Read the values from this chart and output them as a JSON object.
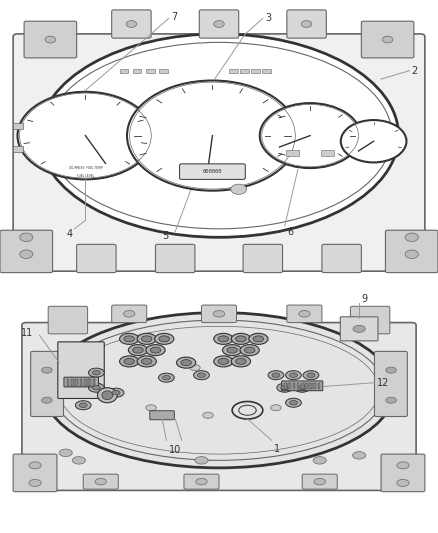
{
  "bg_color": "#ffffff",
  "lc": "#666666",
  "dc": "#333333",
  "lgc": "#999999",
  "mc": "#888888",
  "fig_w": 4.38,
  "fig_h": 5.33,
  "dpi": 100
}
